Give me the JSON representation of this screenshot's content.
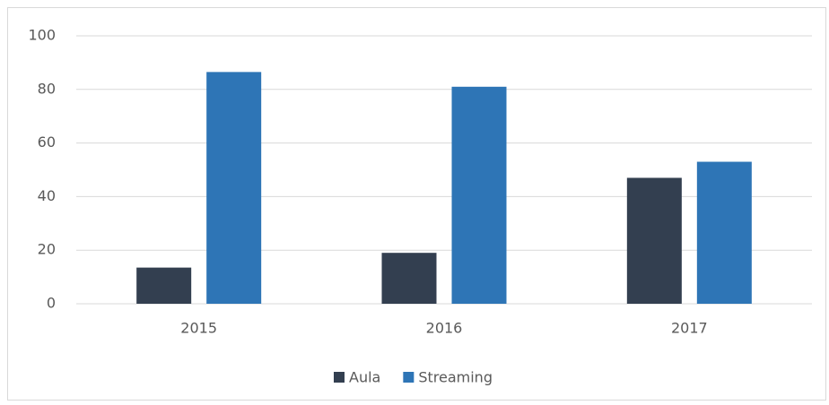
{
  "chart_data": {
    "type": "bar",
    "categories": [
      "2015",
      "2016",
      "2017"
    ],
    "series": [
      {
        "name": "Aula",
        "color": "#333f50",
        "values": [
          13.5,
          19,
          47
        ]
      },
      {
        "name": "Streaming",
        "color": "#2e75b6",
        "values": [
          86.5,
          81,
          53
        ]
      }
    ],
    "ylim": [
      0,
      100
    ],
    "yticks": [
      0,
      20,
      40,
      60,
      80,
      100
    ],
    "grid": true,
    "legend": "bottom"
  }
}
